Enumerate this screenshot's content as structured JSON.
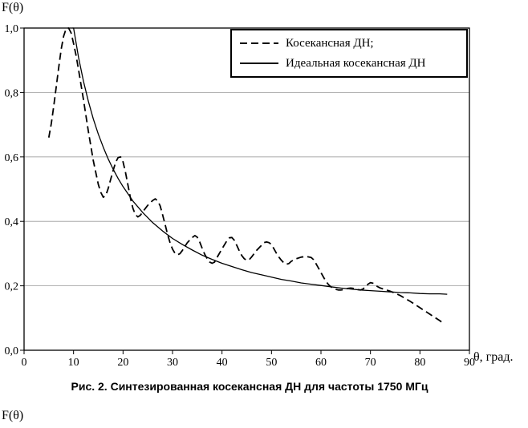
{
  "page": {
    "caption": "Рис. 2. Синтезированная косекансная ДН для частоты 1750 МГц",
    "next_figure_label": "F(θ)"
  },
  "colors": {
    "line": "#000000",
    "grid": "#9a9a9a",
    "axis": "#000000",
    "background": "#ffffff"
  },
  "chart_data": {
    "type": "line",
    "title": "",
    "xlabel": "θ, град.",
    "ylabel": "F(θ)",
    "xlim": [
      0,
      90
    ],
    "ylim": [
      0,
      1
    ],
    "grid": "horizontal",
    "legend_position": "top-right",
    "xticks": [
      0,
      10,
      20,
      30,
      40,
      50,
      60,
      70,
      80,
      90
    ],
    "yticks": [
      {
        "value": 1.0,
        "label": "1,0"
      },
      {
        "value": 0.8,
        "label": "0,8"
      },
      {
        "value": 0.6,
        "label": "0,6"
      },
      {
        "value": 0.4,
        "label": "0,4"
      },
      {
        "value": 0.2,
        "label": "0,2"
      },
      {
        "value": 0.0,
        "label": "0,0"
      }
    ],
    "series": [
      {
        "name": "Косекансная ДН;",
        "style": "dashed",
        "points": [
          [
            5,
            0.66
          ],
          [
            5.5,
            0.703
          ],
          [
            6,
            0.758
          ],
          [
            6.5,
            0.818
          ],
          [
            7,
            0.878
          ],
          [
            7.5,
            0.935
          ],
          [
            8,
            0.975
          ],
          [
            8.5,
            0.998
          ],
          [
            9,
            1.0
          ],
          [
            9.5,
            0.985
          ],
          [
            10,
            0.952
          ],
          [
            10.5,
            0.915
          ],
          [
            11,
            0.872
          ],
          [
            12,
            0.778
          ],
          [
            13,
            0.678
          ],
          [
            14,
            0.588
          ],
          [
            15,
            0.515
          ],
          [
            15.5,
            0.49
          ],
          [
            16,
            0.475
          ],
          [
            16.5,
            0.48
          ],
          [
            17,
            0.502
          ],
          [
            17.5,
            0.53
          ],
          [
            18,
            0.558
          ],
          [
            18.5,
            0.583
          ],
          [
            19,
            0.598
          ],
          [
            19.5,
            0.6
          ],
          [
            20,
            0.585
          ],
          [
            20.5,
            0.552
          ],
          [
            21,
            0.512
          ],
          [
            21.5,
            0.472
          ],
          [
            22,
            0.44
          ],
          [
            22.5,
            0.421
          ],
          [
            23,
            0.414
          ],
          [
            23.5,
            0.419
          ],
          [
            24,
            0.43
          ],
          [
            25,
            0.45
          ],
          [
            26,
            0.465
          ],
          [
            26.5,
            0.47
          ],
          [
            27,
            0.464
          ],
          [
            27.5,
            0.448
          ],
          [
            28,
            0.42
          ],
          [
            28.5,
            0.39
          ],
          [
            29,
            0.36
          ],
          [
            29.5,
            0.334
          ],
          [
            30,
            0.314
          ],
          [
            30.5,
            0.301
          ],
          [
            31,
            0.296
          ],
          [
            31.5,
            0.3
          ],
          [
            32,
            0.31
          ],
          [
            33,
            0.334
          ],
          [
            34,
            0.35
          ],
          [
            34.5,
            0.356
          ],
          [
            35,
            0.351
          ],
          [
            35.5,
            0.336
          ],
          [
            36,
            0.316
          ],
          [
            36.5,
            0.298
          ],
          [
            37,
            0.284
          ],
          [
            37.5,
            0.274
          ],
          [
            38,
            0.27
          ],
          [
            38.5,
            0.274
          ],
          [
            39,
            0.288
          ],
          [
            40,
            0.315
          ],
          [
            41,
            0.34
          ],
          [
            41.5,
            0.349
          ],
          [
            42,
            0.35
          ],
          [
            42.5,
            0.341
          ],
          [
            43,
            0.325
          ],
          [
            43.5,
            0.308
          ],
          [
            44,
            0.294
          ],
          [
            44.5,
            0.284
          ],
          [
            45,
            0.279
          ],
          [
            45.5,
            0.281
          ],
          [
            46,
            0.29
          ],
          [
            47,
            0.31
          ],
          [
            48,
            0.326
          ],
          [
            48.5,
            0.334
          ],
          [
            49,
            0.336
          ],
          [
            49.5,
            0.334
          ],
          [
            50,
            0.328
          ],
          [
            50.5,
            0.315
          ],
          [
            51,
            0.301
          ],
          [
            51.5,
            0.289
          ],
          [
            52,
            0.279
          ],
          [
            52.5,
            0.271
          ],
          [
            53,
            0.267
          ],
          [
            53.5,
            0.269
          ],
          [
            54,
            0.276
          ],
          [
            55,
            0.284
          ],
          [
            56,
            0.289
          ],
          [
            57,
            0.291
          ],
          [
            58,
            0.288
          ],
          [
            58.5,
            0.281
          ],
          [
            59,
            0.269
          ],
          [
            59.5,
            0.255
          ],
          [
            60,
            0.241
          ],
          [
            60.5,
            0.227
          ],
          [
            61,
            0.214
          ],
          [
            61.5,
            0.204
          ],
          [
            62,
            0.197
          ],
          [
            62.5,
            0.192
          ],
          [
            63,
            0.189
          ],
          [
            63.5,
            0.187
          ],
          [
            64,
            0.187
          ],
          [
            64.5,
            0.188
          ],
          [
            65,
            0.19
          ],
          [
            65.5,
            0.192
          ],
          [
            66,
            0.193
          ],
          [
            66.5,
            0.192
          ],
          [
            67,
            0.19
          ],
          [
            67.5,
            0.188
          ],
          [
            68,
            0.187
          ],
          [
            68.5,
            0.19
          ],
          [
            69,
            0.197
          ],
          [
            69.5,
            0.205
          ],
          [
            70,
            0.21
          ],
          [
            70.5,
            0.208
          ],
          [
            71,
            0.202
          ],
          [
            71.5,
            0.197
          ],
          [
            72,
            0.193
          ],
          [
            73,
            0.188
          ],
          [
            74,
            0.183
          ],
          [
            75,
            0.177
          ],
          [
            76,
            0.17
          ],
          [
            77,
            0.161
          ],
          [
            78,
            0.152
          ],
          [
            79,
            0.142
          ],
          [
            80,
            0.132
          ],
          [
            81,
            0.122
          ],
          [
            82,
            0.112
          ],
          [
            83,
            0.102
          ],
          [
            84,
            0.092
          ],
          [
            84.5,
            0.086
          ],
          [
            85,
            0.082
          ]
        ]
      },
      {
        "name": "Идеальная косекансная ДН",
        "style": "solid",
        "points": [
          [
            9.8,
            1.0
          ],
          [
            10,
            1.0
          ],
          [
            11,
            0.91
          ],
          [
            12,
            0.835
          ],
          [
            13,
            0.772
          ],
          [
            14,
            0.718
          ],
          [
            15,
            0.671
          ],
          [
            16,
            0.63
          ],
          [
            17,
            0.594
          ],
          [
            18,
            0.562
          ],
          [
            19,
            0.533
          ],
          [
            20,
            0.508
          ],
          [
            22,
            0.463
          ],
          [
            24,
            0.427
          ],
          [
            26,
            0.396
          ],
          [
            28,
            0.37
          ],
          [
            30,
            0.347
          ],
          [
            32,
            0.328
          ],
          [
            34,
            0.311
          ],
          [
            36,
            0.295
          ],
          [
            38,
            0.282
          ],
          [
            40,
            0.27
          ],
          [
            42,
            0.26
          ],
          [
            44,
            0.25
          ],
          [
            46,
            0.241
          ],
          [
            48,
            0.234
          ],
          [
            50,
            0.227
          ],
          [
            52,
            0.22
          ],
          [
            54,
            0.215
          ],
          [
            56,
            0.209
          ],
          [
            58,
            0.205
          ],
          [
            60,
            0.201
          ],
          [
            62,
            0.197
          ],
          [
            64,
            0.193
          ],
          [
            66,
            0.19
          ],
          [
            68,
            0.187
          ],
          [
            70,
            0.185
          ],
          [
            72,
            0.183
          ],
          [
            74,
            0.181
          ],
          [
            76,
            0.179
          ],
          [
            78,
            0.178
          ],
          [
            80,
            0.176
          ],
          [
            82,
            0.175
          ],
          [
            84,
            0.175
          ],
          [
            85.5,
            0.174
          ]
        ]
      }
    ]
  }
}
